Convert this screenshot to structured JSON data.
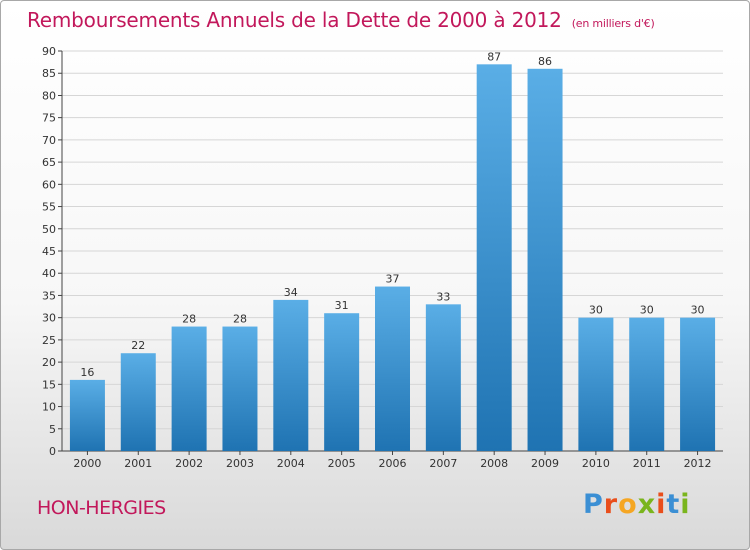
{
  "header": {
    "title": "Remboursements Annuels de la Dette de 2000 à 2012",
    "unit": "(en milliers d'€)"
  },
  "footer": {
    "town": "HON-HERGIES",
    "logo_letters": [
      "P",
      "r",
      "o",
      "x",
      "i",
      "t",
      "i"
    ],
    "logo_colors": [
      "#3b8fd4",
      "#e94e1b",
      "#f5a623",
      "#7ab51d",
      "#e94e1b",
      "#3b8fd4",
      "#7ab51d"
    ]
  },
  "colors": {
    "accent": "#c2185b",
    "bar_top": "#5aaee6",
    "bar_bottom": "#1f73b2"
  },
  "chart_data": {
    "type": "bar",
    "categories": [
      "2000",
      "2001",
      "2002",
      "2003",
      "2004",
      "2005",
      "2006",
      "2007",
      "2008",
      "2009",
      "2010",
      "2011",
      "2012"
    ],
    "values": [
      16,
      22,
      28,
      28,
      34,
      31,
      37,
      33,
      87,
      86,
      30,
      30,
      30
    ],
    "ylim": [
      0,
      90
    ],
    "yticks": [
      0,
      5,
      10,
      15,
      20,
      25,
      30,
      35,
      40,
      45,
      50,
      55,
      60,
      65,
      70,
      75,
      80,
      85,
      90
    ],
    "grid": true,
    "data_labels": true
  }
}
